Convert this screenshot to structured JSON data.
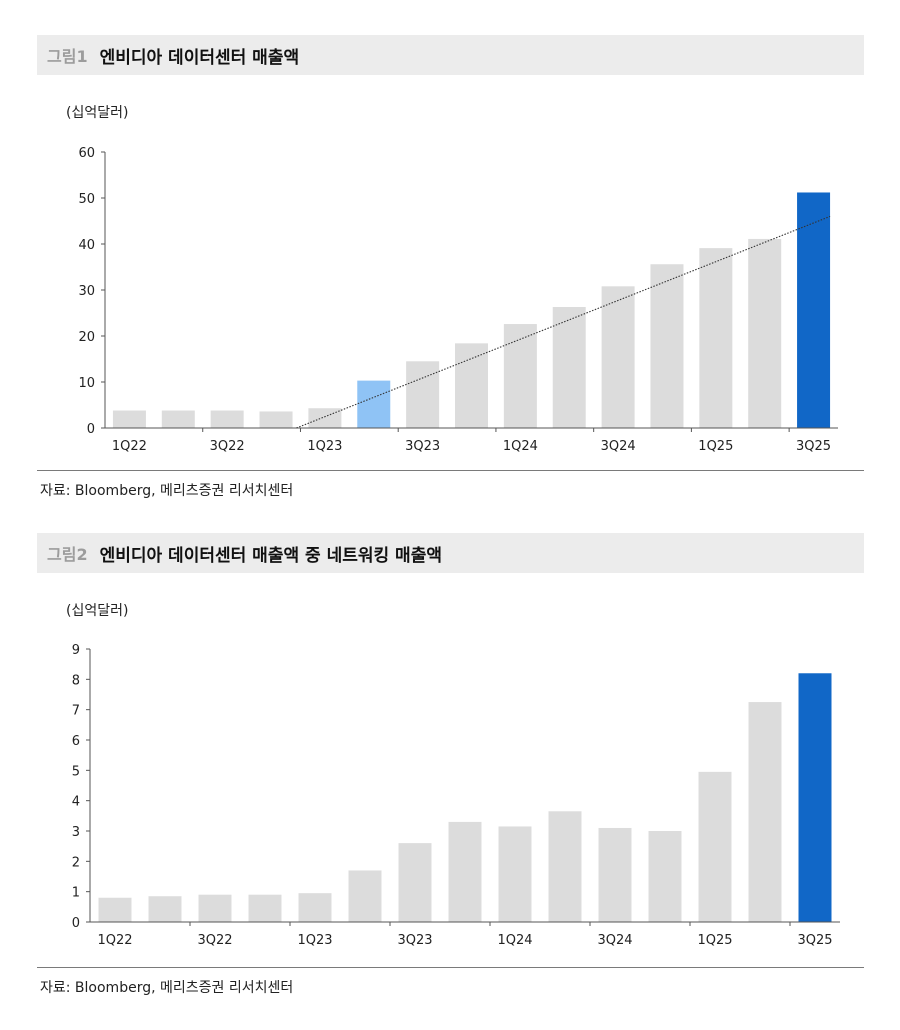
{
  "figure1": {
    "number": "그림1",
    "title": "엔비디아 데이터센터 매출액",
    "unit": "(십억달러)",
    "source": "자료: Bloomberg, 메리츠증권 리서치센터"
  },
  "figure2": {
    "number": "그림2",
    "title": "엔비디아 데이터센터 매출액 중 네트워킹 매출액",
    "unit": "(십억달러)",
    "source": "자료: Bloomberg, 메리츠증권 리서치센터"
  },
  "colors": {
    "bar_default": "#dcdcdc",
    "bar_highlight_light": "#8fc3f5",
    "bar_highlight_dark": "#1167c7",
    "trendline": "#333333"
  },
  "chart_data": [
    {
      "type": "bar",
      "title": "엔비디아 데이터센터 매출액",
      "ylabel": "(십억달러)",
      "ylim": [
        0,
        60
      ],
      "yticks": [
        0,
        10,
        20,
        30,
        40,
        50,
        60
      ],
      "categories": [
        "1Q22",
        "2Q22",
        "3Q22",
        "4Q22",
        "1Q23",
        "2Q23",
        "3Q23",
        "4Q23",
        "1Q24",
        "2Q24",
        "3Q24",
        "4Q24",
        "1Q25",
        "2Q25",
        "3Q25"
      ],
      "xtick_labels": [
        "1Q22",
        "",
        "3Q22",
        "",
        "1Q23",
        "",
        "3Q23",
        "",
        "1Q24",
        "",
        "3Q24",
        "",
        "1Q25",
        "",
        "3Q25"
      ],
      "values": [
        3.8,
        3.8,
        3.8,
        3.6,
        4.3,
        10.3,
        14.5,
        18.4,
        22.6,
        26.3,
        30.8,
        35.6,
        39.1,
        41.1,
        51.2
      ],
      "highlight": {
        "2Q23": "light",
        "3Q25": "dark"
      },
      "trendline": {
        "style": "dotted",
        "from": {
          "x": "1Q23",
          "y": 0
        },
        "to": {
          "x": "3Q25",
          "y": 46
        }
      },
      "grid": false
    },
    {
      "type": "bar",
      "title": "엔비디아 데이터센터 매출액 중 네트워킹 매출액",
      "ylabel": "(십억달러)",
      "ylim": [
        0,
        9
      ],
      "yticks": [
        0,
        1,
        2,
        3,
        4,
        5,
        6,
        7,
        8,
        9
      ],
      "categories": [
        "1Q22",
        "2Q22",
        "3Q22",
        "4Q22",
        "1Q23",
        "2Q23",
        "3Q23",
        "4Q23",
        "1Q24",
        "2Q24",
        "3Q24",
        "4Q24",
        "1Q25",
        "2Q25",
        "3Q25"
      ],
      "xtick_labels": [
        "1Q22",
        "",
        "3Q22",
        "",
        "1Q23",
        "",
        "3Q23",
        "",
        "1Q24",
        "",
        "3Q24",
        "",
        "1Q25",
        "",
        "3Q25"
      ],
      "values": [
        0.8,
        0.85,
        0.9,
        0.9,
        0.95,
        1.7,
        2.6,
        3.3,
        3.15,
        3.65,
        3.1,
        3.0,
        4.95,
        7.25,
        8.2
      ],
      "highlight": {
        "3Q25": "dark"
      },
      "grid": false
    }
  ]
}
